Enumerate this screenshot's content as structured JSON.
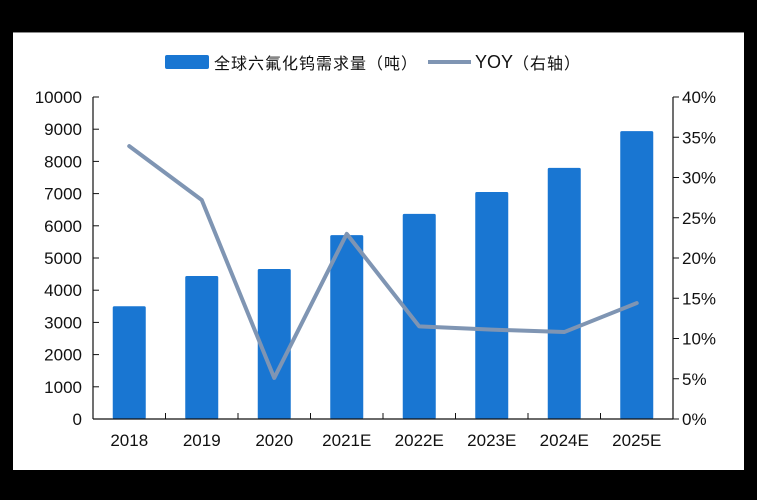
{
  "legend": {
    "bar_label": "全球六氟化钨需求量（吨）",
    "line_label_en": "YOY",
    "line_label_cn": "（右轴）"
  },
  "colors": {
    "bar": "#1976d2",
    "line": "#7f95b3",
    "axis": "#111111",
    "background": "#ffffff",
    "frame": "#000000"
  },
  "chart_data": {
    "type": "bar+line",
    "title": "",
    "categories": [
      "2018",
      "2019",
      "2020",
      "2021E",
      "2022E",
      "2023E",
      "2024E",
      "2025E"
    ],
    "series": [
      {
        "name": "全球六氟化钨需求量（吨）",
        "type": "bar",
        "axis": "left",
        "values": [
          3500,
          4440,
          4660,
          5710,
          6370,
          7050,
          7800,
          8940
        ]
      },
      {
        "name": "YOY（右轴）",
        "type": "line",
        "axis": "right",
        "values": [
          33.9,
          27.2,
          5.1,
          23.0,
          11.5,
          11.1,
          10.8,
          14.4
        ]
      }
    ],
    "xlabel": "",
    "ylabel_left": "",
    "ylabel_right": "",
    "ylim_left": [
      0,
      10000
    ],
    "ylim_right": [
      0,
      40
    ],
    "left_ticks": [
      "0",
      "1000",
      "2000",
      "3000",
      "4000",
      "5000",
      "6000",
      "7000",
      "8000",
      "9000",
      "10000"
    ],
    "right_ticks": [
      "0%",
      "5%",
      "10%",
      "15%",
      "20%",
      "25%",
      "30%",
      "35%",
      "40%"
    ],
    "grid": false,
    "legend_position": "top"
  }
}
